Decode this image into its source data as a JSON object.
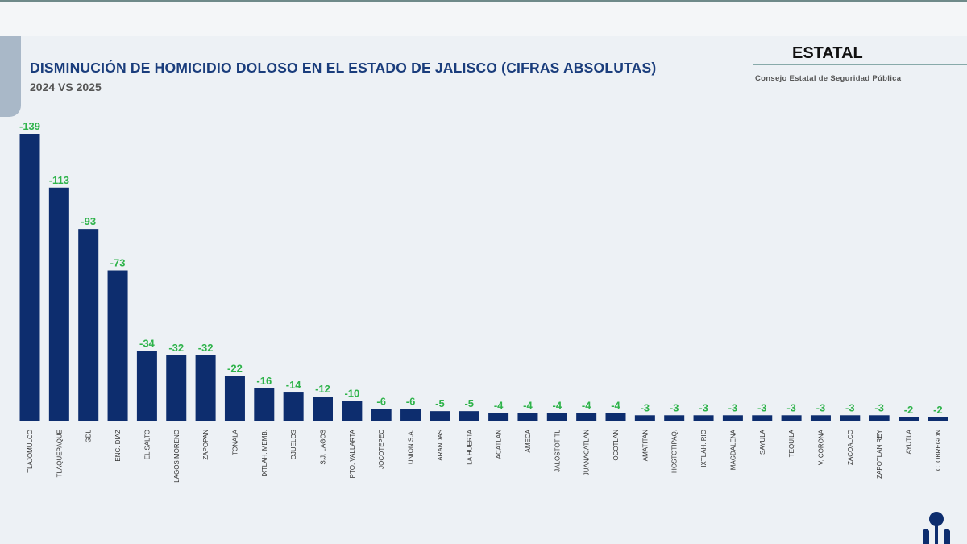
{
  "header": {
    "title": "DISMINUCIÓN DE HOMICIDIO DOLOSO EN EL ESTADO DE JALISCO (CIFRAS ABSOLUTAS)",
    "subtitle": "2024 VS 2025",
    "badge": "ESTATAL",
    "source": "Consejo Estatal de Seguridad Pública"
  },
  "colors": {
    "bar": "#0d2d6e",
    "label": "#2eb34a",
    "title": "#1a3d7c"
  },
  "chart_data": {
    "type": "bar",
    "title": "DISMINUCIÓN DE HOMICIDIO DOLOSO EN EL ESTADO DE JALISCO (CIFRAS ABSOLUTAS)",
    "subtitle": "2024 VS 2025",
    "categories": [
      "TLAJOMULCO",
      "TLAQUEPAQUE",
      "GDL",
      "ENC. DIAZ",
      "EL SALTO",
      "LAGOS MORENO",
      "ZAPOPAN",
      "TONALA",
      "IXTLAH. MEMB.",
      "OJUELOS",
      "S.J. LAGOS",
      "PTO. VALLARTA",
      "JOCOTEPEC",
      "UNION S.A.",
      "ARANDAS",
      "LA HUERTA",
      "ACATLAN",
      "AMECA",
      "JALOSTOTITL",
      "JUANACATLAN",
      "OCOTLAN",
      "AMATITAN",
      "HOSTOTIPAQ.",
      "IXTLAH. RIO",
      "MAGDALENA",
      "SAYULA",
      "TEQUILA",
      "V. CORONA",
      "ZACOALCO",
      "ZAPOTLAN REY",
      "AYUTLA",
      "C. OBREGON"
    ],
    "values": [
      -139,
      -113,
      -93,
      -73,
      -34,
      -32,
      -32,
      -22,
      -16,
      -14,
      -12,
      -10,
      -6,
      -6,
      -5,
      -5,
      -4,
      -4,
      -4,
      -4,
      -4,
      -3,
      -3,
      -3,
      -3,
      -3,
      -3,
      -3,
      -3,
      -3,
      -2,
      -2
    ],
    "xlabel": "",
    "ylabel": "",
    "grid": false,
    "legend": "none"
  }
}
